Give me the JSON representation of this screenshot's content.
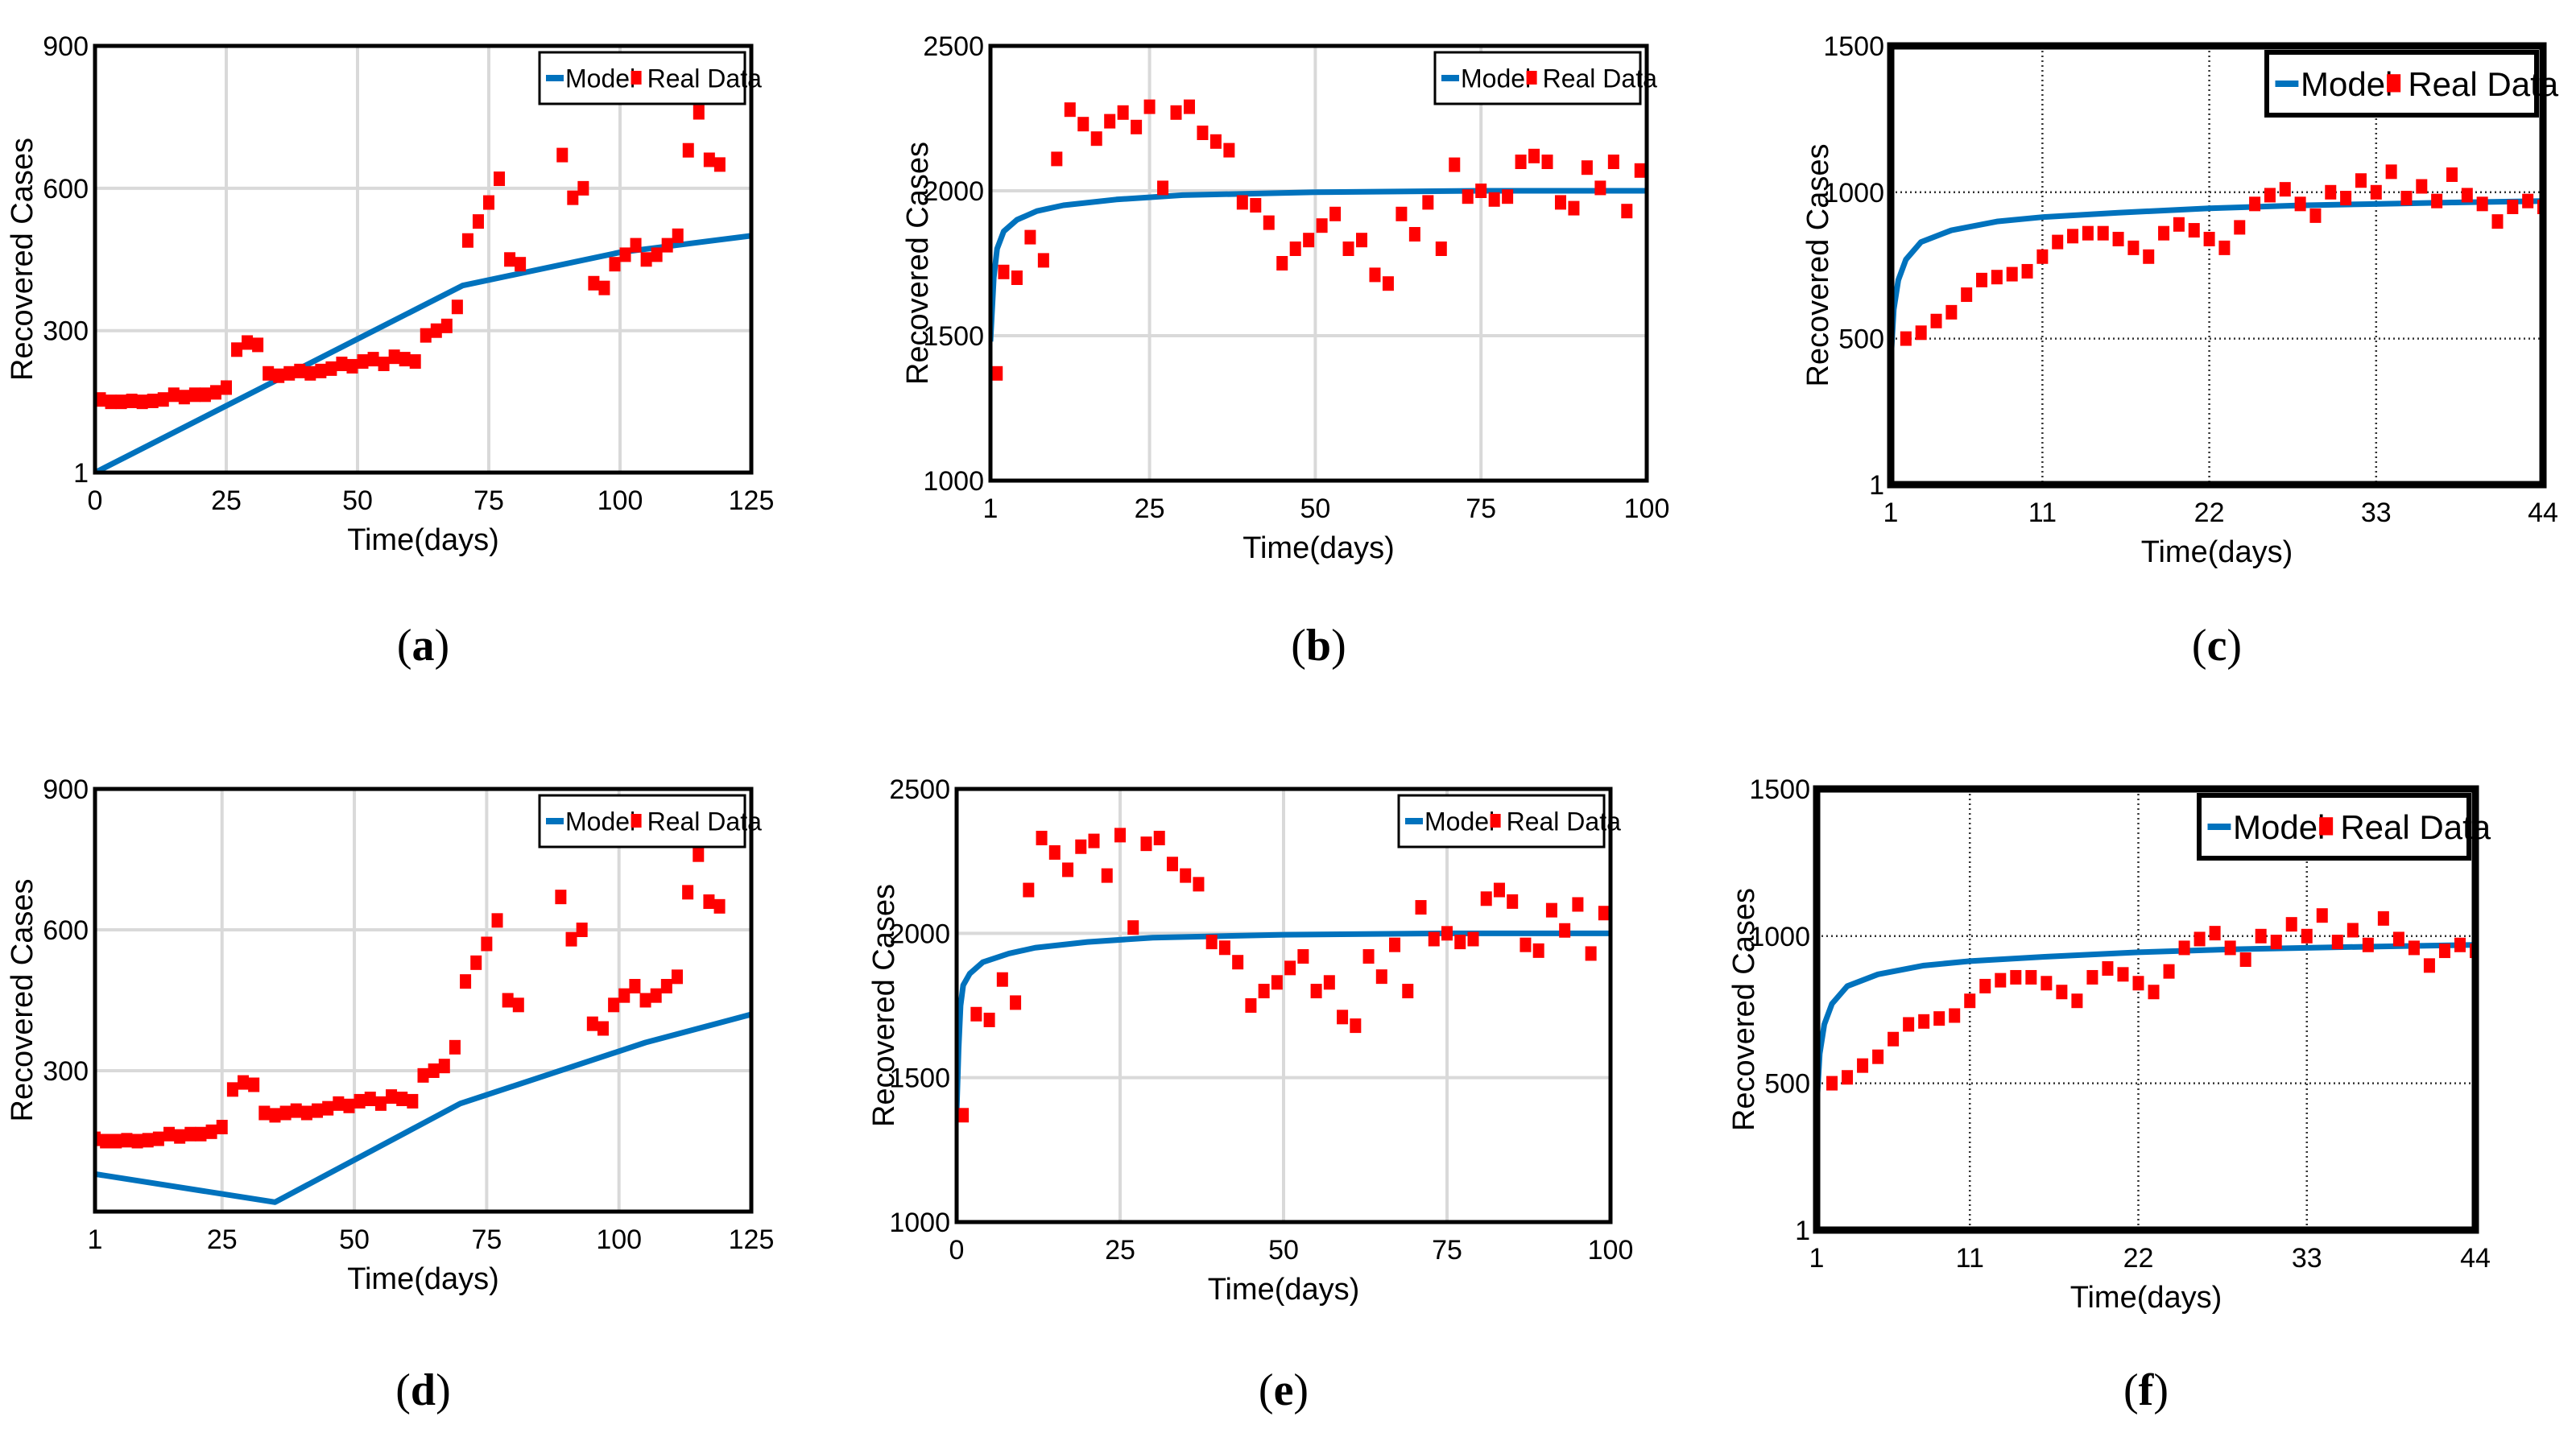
{
  "colors": {
    "model": "#0072BD",
    "real": "#FF0000",
    "grid": "#d9d9d9",
    "axis": "#000000"
  },
  "chart_data": [
    {
      "id": "a",
      "type": "line+scatter",
      "caption": "a",
      "xlabel": "Time(days)",
      "ylabel": "Recovered Cases",
      "xlim": [
        0,
        125
      ],
      "ylim": [
        1,
        900
      ],
      "xticks": [
        0,
        25,
        50,
        75,
        100,
        125
      ],
      "xtick_labels": [
        "0",
        "25",
        "50",
        "75",
        "100",
        "125"
      ],
      "yticks": [
        1,
        300,
        600,
        900
      ],
      "ytick_labels": [
        "1",
        "300",
        "600",
        "900"
      ],
      "grid": "solid",
      "legend": [
        "Model",
        "Real Data"
      ],
      "legend_position": "top-right",
      "series": [
        {
          "name": "Model",
          "kind": "line",
          "x": [
            0,
            70,
            100,
            125
          ],
          "y": [
            1,
            395,
            465,
            500
          ]
        },
        {
          "name": "Real Data",
          "kind": "scatter",
          "x": [
            1,
            3,
            5,
            7,
            9,
            11,
            13,
            15,
            17,
            19,
            21,
            23,
            25,
            27,
            29,
            31,
            33,
            35,
            37,
            39,
            41,
            43,
            45,
            47,
            49,
            51,
            53,
            55,
            57,
            59,
            61,
            63,
            65,
            67,
            69,
            71,
            73,
            75,
            77,
            79,
            81,
            89,
            91,
            93,
            95,
            97,
            99,
            101,
            103,
            105,
            107,
            109,
            111,
            113,
            115,
            117,
            119
          ],
          "y": [
            155,
            150,
            150,
            152,
            150,
            152,
            155,
            165,
            160,
            165,
            165,
            170,
            180,
            260,
            275,
            270,
            210,
            205,
            210,
            215,
            210,
            215,
            220,
            230,
            225,
            235,
            240,
            230,
            245,
            240,
            235,
            290,
            300,
            310,
            350,
            490,
            530,
            570,
            620,
            450,
            440,
            670,
            580,
            600,
            400,
            390,
            440,
            460,
            480,
            450,
            460,
            480,
            500,
            680,
            760,
            660,
            650
          ]
        }
      ]
    },
    {
      "id": "b",
      "type": "line+scatter",
      "caption": "b",
      "xlabel": "Time(days)",
      "ylabel": "Recovered Cases",
      "xlim": [
        1,
        100
      ],
      "ylim": [
        1000,
        2500
      ],
      "xticks": [
        1,
        25,
        50,
        75,
        100
      ],
      "xtick_labels": [
        "1",
        "25",
        "50",
        "75",
        "100"
      ],
      "yticks": [
        1000,
        1500,
        2000,
        2500
      ],
      "ytick_labels": [
        "1000",
        "1500",
        "2000",
        "2500"
      ],
      "grid": "solid",
      "legend": [
        "Model",
        "Real Data"
      ],
      "legend_position": "top-right",
      "series": [
        {
          "name": "Model",
          "kind": "line",
          "x": [
            1,
            1.5,
            2,
            3,
            5,
            8,
            12,
            20,
            30,
            50,
            75,
            100
          ],
          "y": [
            1480,
            1700,
            1800,
            1860,
            1900,
            1930,
            1950,
            1970,
            1985,
            1995,
            2000,
            2000
          ]
        },
        {
          "name": "Real Data",
          "kind": "scatter",
          "x": [
            2,
            3,
            5,
            7,
            9,
            11,
            13,
            15,
            17,
            19,
            21,
            23,
            25,
            27,
            29,
            31,
            33,
            35,
            37,
            39,
            41,
            43,
            45,
            47,
            49,
            51,
            53,
            55,
            57,
            59,
            61,
            63,
            65,
            67,
            69,
            71,
            73,
            75,
            77,
            79,
            81,
            83,
            85,
            87,
            89,
            91,
            93,
            95,
            97,
            99
          ],
          "y": [
            1370,
            1720,
            1700,
            1840,
            1760,
            2110,
            2280,
            2230,
            2180,
            2240,
            2270,
            2220,
            2290,
            2010,
            2270,
            2290,
            2200,
            2170,
            2140,
            1960,
            1950,
            1890,
            1750,
            1800,
            1830,
            1880,
            1920,
            1800,
            1830,
            1710,
            1680,
            1920,
            1850,
            1960,
            1800,
            2090,
            1980,
            2000,
            1970,
            1980,
            2100,
            2120,
            2100,
            1960,
            1940,
            2080,
            2010,
            2100,
            1930,
            2070
          ]
        }
      ]
    },
    {
      "id": "c",
      "type": "line+scatter",
      "caption": "c",
      "xlabel": "Time(days)",
      "ylabel": "Recovered Cases",
      "xlim": [
        1,
        44
      ],
      "ylim": [
        1,
        1500
      ],
      "xticks": [
        1,
        11,
        22,
        33,
        44
      ],
      "xtick_labels": [
        "1",
        "11",
        "22",
        "33",
        "44"
      ],
      "yticks": [
        1,
        500,
        1000,
        1500
      ],
      "ytick_labels": [
        "1",
        "500",
        "1000",
        "1500"
      ],
      "grid": "dotted",
      "legend": [
        "Model",
        "Real Data"
      ],
      "legend_position": "top-right",
      "series": [
        {
          "name": "Model",
          "kind": "line",
          "x": [
            1,
            1.2,
            1.5,
            2,
            3,
            5,
            8,
            11,
            16,
            22,
            28,
            33,
            38,
            44
          ],
          "y": [
            420,
            600,
            700,
            770,
            830,
            870,
            900,
            915,
            930,
            945,
            955,
            960,
            965,
            970
          ]
        },
        {
          "name": "Real Data",
          "kind": "scatter",
          "x": [
            2,
            3,
            4,
            5,
            6,
            7,
            8,
            9,
            10,
            11,
            12,
            13,
            14,
            15,
            16,
            17,
            18,
            19,
            20,
            21,
            22,
            23,
            24,
            25,
            26,
            27,
            28,
            29,
            30,
            31,
            32,
            33,
            34,
            35,
            36,
            37,
            38,
            39,
            40,
            41,
            42,
            43,
            44
          ],
          "y": [
            500,
            520,
            560,
            590,
            650,
            700,
            710,
            720,
            730,
            780,
            830,
            850,
            860,
            860,
            840,
            810,
            780,
            860,
            890,
            870,
            840,
            810,
            880,
            960,
            990,
            1010,
            960,
            920,
            1000,
            980,
            1040,
            1000,
            1070,
            980,
            1020,
            970,
            1060,
            990,
            960,
            900,
            950,
            970,
            950
          ]
        }
      ]
    },
    {
      "id": "d",
      "type": "line+scatter",
      "caption": "d",
      "xlabel": "Time(days)",
      "ylabel": "Recovered Cases",
      "xlim": [
        1,
        125
      ],
      "ylim": [
        0,
        900
      ],
      "xticks": [
        1,
        25,
        50,
        75,
        100,
        125
      ],
      "xtick_labels": [
        "1",
        "25",
        "50",
        "75",
        "100",
        "125"
      ],
      "yticks": [
        300,
        600,
        900
      ],
      "ytick_labels": [
        "300",
        "600",
        "900"
      ],
      "grid": "solid",
      "legend": [
        "Model",
        "Real Data"
      ],
      "legend_position": "top-right",
      "series": [
        {
          "name": "Model",
          "kind": "line",
          "x": [
            1,
            35,
            70,
            105,
            125
          ],
          "y": [
            80,
            20,
            230,
            360,
            420
          ]
        },
        {
          "name": "Real Data",
          "kind": "scatter",
          "x": [
            1,
            3,
            5,
            7,
            9,
            11,
            13,
            15,
            17,
            19,
            21,
            23,
            25,
            27,
            29,
            31,
            33,
            35,
            37,
            39,
            41,
            43,
            45,
            47,
            49,
            51,
            53,
            55,
            57,
            59,
            61,
            63,
            65,
            67,
            69,
            71,
            73,
            75,
            77,
            79,
            81,
            89,
            91,
            93,
            95,
            97,
            99,
            101,
            103,
            105,
            107,
            109,
            111,
            113,
            115,
            117,
            119
          ],
          "y": [
            155,
            150,
            150,
            152,
            150,
            152,
            155,
            165,
            160,
            165,
            165,
            170,
            180,
            260,
            275,
            270,
            210,
            205,
            210,
            215,
            210,
            215,
            220,
            230,
            225,
            235,
            240,
            230,
            245,
            240,
            235,
            290,
            300,
            310,
            350,
            490,
            530,
            570,
            620,
            450,
            440,
            670,
            580,
            600,
            400,
            390,
            440,
            460,
            480,
            450,
            460,
            480,
            500,
            680,
            760,
            660,
            650
          ]
        }
      ]
    },
    {
      "id": "e",
      "type": "line+scatter",
      "caption": "e",
      "xlabel": "Time(days)",
      "ylabel": "Recovered Cases",
      "xlim": [
        0,
        100
      ],
      "ylim": [
        1000,
        2500
      ],
      "xticks": [
        0,
        25,
        50,
        75,
        100
      ],
      "xtick_labels": [
        "0",
        "25",
        "50",
        "75",
        "100"
      ],
      "yticks": [
        1000,
        1500,
        2000,
        2500
      ],
      "ytick_labels": [
        "1000",
        "1500",
        "2000",
        "2500"
      ],
      "grid": "solid",
      "legend": [
        "Model",
        "Real Data"
      ],
      "legend_position": "top-right",
      "series": [
        {
          "name": "Model",
          "kind": "line",
          "x": [
            0,
            0.3,
            0.6,
            1,
            2,
            4,
            8,
            12,
            20,
            30,
            50,
            75,
            100
          ],
          "y": [
            1380,
            1600,
            1750,
            1820,
            1860,
            1900,
            1930,
            1950,
            1970,
            1985,
            1995,
            2000,
            2000
          ]
        },
        {
          "name": "Real Data",
          "kind": "scatter",
          "x": [
            1,
            3,
            5,
            7,
            9,
            11,
            13,
            15,
            17,
            19,
            21,
            23,
            25,
            27,
            29,
            31,
            33,
            35,
            37,
            39,
            41,
            43,
            45,
            47,
            49,
            51,
            53,
            55,
            57,
            59,
            61,
            63,
            65,
            67,
            69,
            71,
            73,
            75,
            77,
            79,
            81,
            83,
            85,
            87,
            89,
            91,
            93,
            95,
            97,
            99
          ],
          "y": [
            1370,
            1720,
            1700,
            1840,
            1760,
            2150,
            2330,
            2280,
            2220,
            2300,
            2320,
            2200,
            2340,
            2020,
            2310,
            2330,
            2240,
            2200,
            2170,
            1970,
            1950,
            1900,
            1750,
            1800,
            1830,
            1880,
            1920,
            1800,
            1830,
            1710,
            1680,
            1920,
            1850,
            1960,
            1800,
            2090,
            1980,
            2000,
            1970,
            1980,
            2120,
            2150,
            2110,
            1960,
            1940,
            2080,
            2010,
            2100,
            1930,
            2070
          ]
        }
      ]
    },
    {
      "id": "f",
      "type": "line+scatter",
      "caption": "f",
      "xlabel": "Time(days)",
      "ylabel": "Recovered Cases",
      "xlim": [
        1,
        44
      ],
      "ylim": [
        1,
        1500
      ],
      "xticks": [
        1,
        11,
        22,
        33,
        44
      ],
      "xtick_labels": [
        "1",
        "11",
        "22",
        "33",
        "44"
      ],
      "yticks": [
        1,
        500,
        1000,
        1500
      ],
      "ytick_labels": [
        "1",
        "500",
        "1000",
        "1500"
      ],
      "grid": "dotted",
      "legend": [
        "Model",
        "Real Data"
      ],
      "legend_position": "top-right",
      "series": [
        {
          "name": "Model",
          "kind": "line",
          "x": [
            1,
            1.2,
            1.5,
            2,
            3,
            5,
            8,
            11,
            16,
            22,
            28,
            33,
            38,
            44
          ],
          "y": [
            420,
            600,
            700,
            770,
            830,
            870,
            900,
            915,
            930,
            945,
            955,
            960,
            965,
            970
          ]
        },
        {
          "name": "Real Data",
          "kind": "scatter",
          "x": [
            2,
            3,
            4,
            5,
            6,
            7,
            8,
            9,
            10,
            11,
            12,
            13,
            14,
            15,
            16,
            17,
            18,
            19,
            20,
            21,
            22,
            23,
            24,
            25,
            26,
            27,
            28,
            29,
            30,
            31,
            32,
            33,
            34,
            35,
            36,
            37,
            38,
            39,
            40,
            41,
            42,
            43,
            44
          ],
          "y": [
            500,
            520,
            560,
            590,
            650,
            700,
            710,
            720,
            730,
            780,
            830,
            850,
            860,
            860,
            840,
            810,
            780,
            860,
            890,
            870,
            840,
            810,
            880,
            960,
            990,
            1010,
            960,
            920,
            1000,
            980,
            1040,
            1000,
            1070,
            980,
            1020,
            970,
            1060,
            990,
            960,
            900,
            950,
            970,
            950
          ]
        }
      ]
    }
  ]
}
